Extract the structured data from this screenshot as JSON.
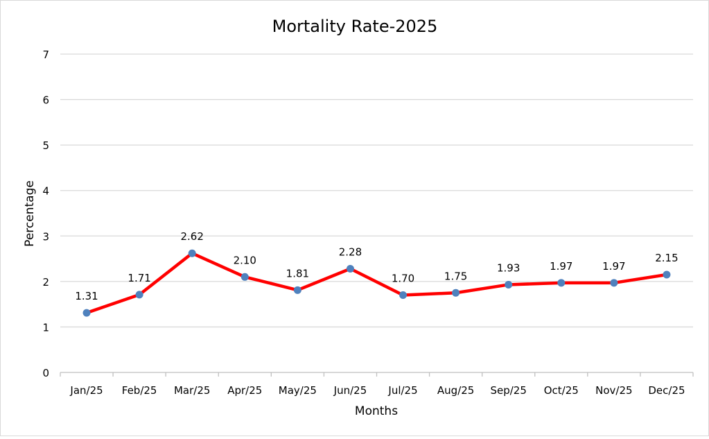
{
  "chart_data": {
    "type": "line",
    "title": "Mortality Rate-2025",
    "xlabel": "Months",
    "ylabel": "Percentage",
    "categories": [
      "Jan/25",
      "Feb/25",
      "Mar/25",
      "Apr/25",
      "May/25",
      "Jun/25",
      "Jul/25",
      "Aug/25",
      "Sep/25",
      "Oct/25",
      "Nov/25",
      "Dec/25"
    ],
    "values": [
      1.31,
      1.71,
      2.62,
      2.1,
      1.81,
      2.28,
      1.7,
      1.75,
      1.93,
      1.97,
      1.97,
      2.15
    ],
    "data_labels": [
      "1.31",
      "1.71",
      "2.62",
      "2.10",
      "1.81",
      "2.28",
      "1.70",
      "1.75",
      "1.93",
      "1.97",
      "1.97",
      "2.15"
    ],
    "ylim": [
      0,
      7
    ],
    "yticks": [
      "0",
      "1",
      "2",
      "3",
      "4",
      "5",
      "6",
      "7"
    ],
    "grid": true,
    "legend": "none",
    "colors": {
      "line": "#FF0000",
      "marker": "#4F81BD",
      "grid": "#D9D9D9",
      "text": "#000000"
    }
  }
}
